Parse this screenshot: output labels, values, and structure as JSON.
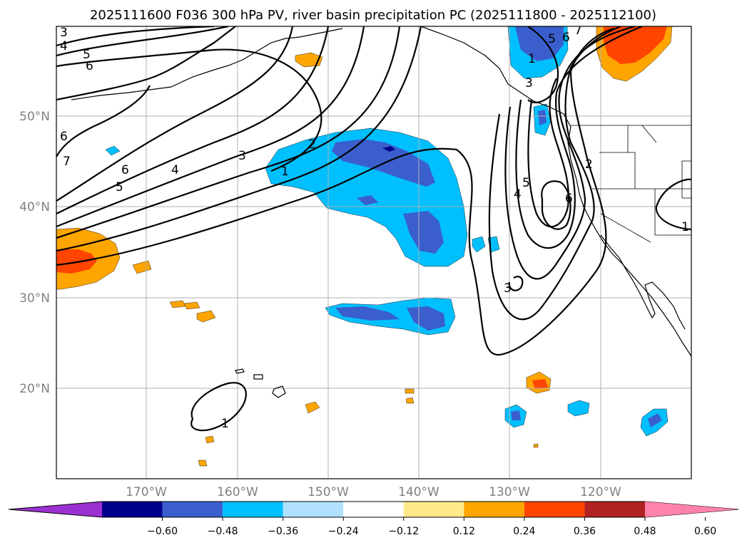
{
  "title": "2025111600 F036 300 hPa PV, river basin precipitation PC (2025111800 - 2025112100)",
  "latitude_labels": [
    "50°N",
    "40°N",
    "30°N",
    "20°N"
  ],
  "longitude_labels": [
    "170°W",
    "160°W",
    "150°W",
    "140°W",
    "130°W",
    "120°W"
  ],
  "colorbar": {
    "ticks": [
      "−0.60",
      "−0.48",
      "−0.36",
      "−0.24",
      "−0.12",
      "0.12",
      "0.24",
      "0.36",
      "0.48",
      "0.60"
    ],
    "colors": [
      "#9b30d0",
      "#00008b",
      "#3a5fcd",
      "#00bfff",
      "#b0e2ff",
      "#ffffff",
      "#ffe98a",
      "#ffa500",
      "#ff4500",
      "#b22222",
      "#ff82ab"
    ],
    "extend": "both"
  },
  "contour_labels": [
    "3",
    "4",
    "5",
    "6",
    "6",
    "7",
    "6",
    "5",
    "4",
    "3",
    "2",
    "1",
    "1",
    "2",
    "3",
    "4",
    "5",
    "6",
    "5",
    "6",
    "7",
    "3",
    "1",
    "1"
  ],
  "colors": {
    "frame": "#000000",
    "grid": "#b0b0b0",
    "axis_labels": "#808080"
  }
}
